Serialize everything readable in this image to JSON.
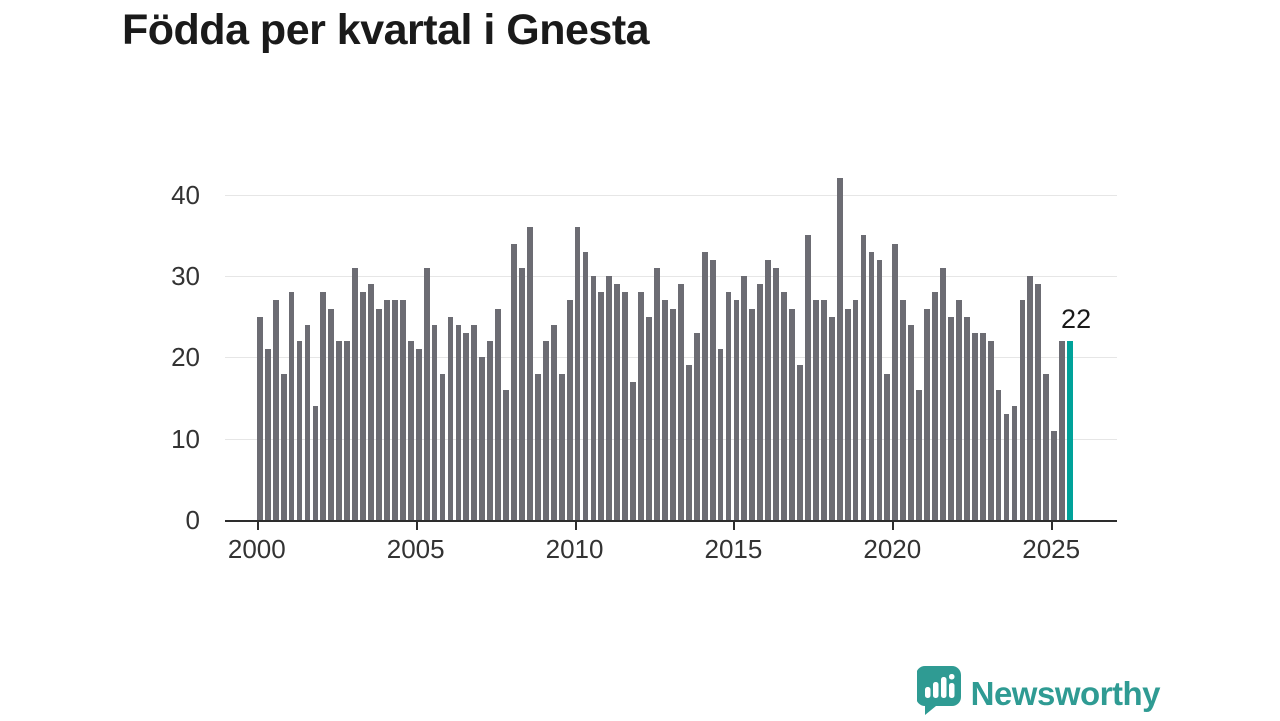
{
  "title": "Födda per kvartal i Gnesta",
  "chart_data": {
    "type": "bar",
    "title": "Födda per kvartal i Gnesta",
    "xlabel": "",
    "ylabel": "",
    "x_tick_labels": [
      "2000",
      "2005",
      "2010",
      "2015",
      "2020",
      "2025"
    ],
    "y_ticks": [
      0,
      10,
      20,
      30,
      40
    ],
    "ylim": [
      0,
      45
    ],
    "grid": "horizontal",
    "categories_note": "quarterly values, K1-K4 per year, 2000 K1 through 2025 K3",
    "values_by_year": {
      "2000": [
        25,
        21,
        27,
        18
      ],
      "2001": [
        28,
        22,
        24,
        14
      ],
      "2002": [
        28,
        26,
        22,
        22
      ],
      "2003": [
        31,
        28,
        29,
        26
      ],
      "2004": [
        27,
        27,
        27,
        22
      ],
      "2005": [
        21,
        31,
        24,
        18
      ],
      "2006": [
        25,
        24,
        23,
        24
      ],
      "2007": [
        20,
        22,
        26,
        16
      ],
      "2008": [
        34,
        31,
        36,
        18
      ],
      "2009": [
        22,
        24,
        18,
        27
      ],
      "2010": [
        36,
        33,
        30,
        28
      ],
      "2011": [
        30,
        29,
        28,
        17
      ],
      "2012": [
        28,
        25,
        31,
        27
      ],
      "2013": [
        26,
        29,
        19,
        23
      ],
      "2014": [
        33,
        32,
        21,
        28
      ],
      "2015": [
        27,
        30,
        26,
        29
      ],
      "2016": [
        32,
        31,
        28,
        26
      ],
      "2017": [
        19,
        35,
        27,
        27
      ],
      "2018": [
        25,
        42,
        26,
        27
      ],
      "2019": [
        35,
        33,
        32,
        18
      ],
      "2020": [
        34,
        27,
        24,
        16
      ],
      "2021": [
        26,
        28,
        31,
        25
      ],
      "2022": [
        27,
        25,
        23,
        23
      ],
      "2023": [
        22,
        16,
        13,
        14
      ],
      "2024": [
        27,
        30,
        29,
        18
      ],
      "2025": [
        11,
        22,
        22
      ]
    },
    "highlight_last": true,
    "last_value_label": "22",
    "legend": "none",
    "colors": {
      "bar": "#6c6c73",
      "highlight": "#00a29a",
      "grid": "#e6e6e6",
      "axis": "#2d2d2d",
      "tick_text": "#333333",
      "title_text": "#1a1a1a"
    }
  },
  "branding": {
    "logo_text": "Newsworthy",
    "logo_color": "#2f9b93",
    "logo_icon": "bar-chart-speech-bubble-icon"
  }
}
